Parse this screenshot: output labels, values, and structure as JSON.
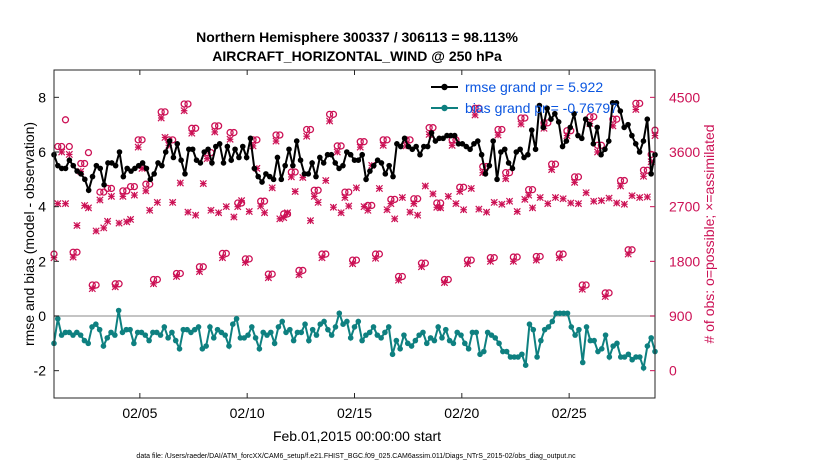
{
  "chart_data": {
    "type": "line",
    "title_line1": "Northern Hemisphere 300337 / 306113 = 98.113%",
    "title_line2": "AIRCRAFT_HORIZONTAL_WIND @ 250 hPa",
    "xlabel": "Feb.01,2015 00:00:00 start",
    "ylabel": "rmse and bias (model - observation)",
    "y2label": "# of obs: o=possible; ×=assimilated",
    "footer": "data file: /Users/raeder/DAI/ATM_forcXX/CAM6_setup/f.e21.FHIST_BGC.f09_025.CAM6assim.011/Diags_NTrS_2015-02/obs_diag_output.nc",
    "xlim": [
      1,
      29
    ],
    "ylim": [
      -3,
      9
    ],
    "y2lim": [
      -450,
      4950
    ],
    "x_ticks": [
      5,
      10,
      15,
      20,
      25
    ],
    "x_tick_labels": [
      "02/05",
      "02/10",
      "02/15",
      "02/20",
      "02/25"
    ],
    "y_ticks": [
      -2,
      0,
      2,
      4,
      6,
      8
    ],
    "y2_ticks": [
      0,
      900,
      1800,
      2700,
      3600,
      4500
    ],
    "legend": [
      {
        "name": "rmse grand pr = 5.922",
        "color": "#000000"
      },
      {
        "name": "bias grand pr = -0.76797",
        "color": "#0e8080"
      }
    ],
    "rmse": [
      5.9,
      5.5,
      5.4,
      5.4,
      5.7,
      5.5,
      5.3,
      5.2,
      5.0,
      4.6,
      5.1,
      5.5,
      5.4,
      4.8,
      5.6,
      5.6,
      5.5,
      6.0,
      5.1,
      5.4,
      5.3,
      5.4,
      5.5,
      5.6,
      5.4,
      5.0,
      5.2,
      5.6,
      5.5,
      6.0,
      6.4,
      5.8,
      6.3,
      5.7,
      5.2,
      6.1,
      6.1,
      5.7,
      5.6,
      6.0,
      6.1,
      5.6,
      6.2,
      6.3,
      5.6,
      6.2,
      5.7,
      6.1,
      5.8,
      6.2,
      5.8,
      6.5,
      5.4,
      5.1,
      4.9,
      5.2,
      5.1,
      5.0,
      5.8,
      5.0,
      5.5,
      6.1,
      5.5,
      6.4,
      5.7,
      5.2,
      5.2,
      5.6,
      5.1,
      5.8,
      5.6,
      5.9,
      5.9,
      5.6,
      5.4,
      5.5,
      6.0,
      5.9,
      5.7,
      5.7,
      5.9,
      5.0,
      5.3,
      5.5,
      5.7,
      5.6,
      5.2,
      5.5,
      5.1,
      6.3,
      6.2,
      6.5,
      6.2,
      6.1,
      6.2,
      5.9,
      6.2,
      6.2,
      6.7,
      6.4,
      6.5,
      6.5,
      6.6,
      6.6,
      6.6,
      6.3,
      6.3,
      6.2,
      6.1,
      6.3,
      6.4,
      5.9,
      5.2,
      5.5,
      6.4,
      5.0,
      6.0,
      6.1,
      5.6,
      5.4,
      6.0,
      6.1,
      5.8,
      5.9,
      6.8,
      6.1,
      7.7,
      6.9,
      7.6,
      7.2,
      7.4,
      7.1,
      6.2,
      6.4,
      6.9,
      7.4,
      6.6,
      6.5,
      7.2,
      7.0,
      6.3,
      6.9,
      5.9,
      6.1,
      6.4,
      7.8,
      7.8,
      7.5,
      6.9,
      7.0,
      6.6,
      6.3,
      6.0,
      6.4,
      7.2,
      5.2,
      5.9
    ],
    "bias": [
      -1.0,
      -0.1,
      -0.7,
      -0.6,
      -0.6,
      -0.7,
      -0.6,
      -0.7,
      -0.9,
      -1.0,
      -0.4,
      -0.3,
      -0.5,
      -1.1,
      -0.8,
      -0.6,
      -0.7,
      0.2,
      -0.6,
      -0.5,
      -0.5,
      -1.0,
      -0.6,
      -0.6,
      -0.7,
      -0.9,
      -0.6,
      -0.6,
      -0.7,
      -0.4,
      -0.8,
      -0.6,
      -0.9,
      -1.2,
      -0.5,
      -0.5,
      -0.6,
      -0.5,
      -0.4,
      -1.2,
      -1.1,
      -0.4,
      -0.8,
      -0.5,
      -0.6,
      -0.7,
      -1.1,
      -0.3,
      -0.1,
      -0.8,
      -0.8,
      -0.7,
      -0.4,
      -0.8,
      -1.2,
      -0.6,
      -0.7,
      -0.6,
      -1.0,
      -0.4,
      -0.2,
      -0.6,
      -0.5,
      -0.9,
      -0.6,
      -0.6,
      -0.3,
      -0.9,
      -0.5,
      -0.7,
      -0.3,
      -0.2,
      -0.5,
      -0.7,
      -0.4,
      0.1,
      -0.3,
      -0.2,
      -0.8,
      -0.4,
      -0.2,
      -0.9,
      -0.7,
      -0.6,
      -0.4,
      -0.7,
      -0.8,
      -0.6,
      -0.4,
      -1.4,
      -0.9,
      -1.2,
      -0.7,
      -1.0,
      -1.1,
      -0.9,
      -0.7,
      -0.6,
      -1.0,
      -0.8,
      -0.9,
      -0.4,
      -0.8,
      -0.5,
      -0.9,
      -1.0,
      -0.6,
      -0.7,
      -1.0,
      -1.2,
      -0.6,
      -0.6,
      -1.4,
      -1.3,
      -0.6,
      -0.7,
      -0.8,
      -1.0,
      -1.3,
      -1.3,
      -1.5,
      -1.5,
      -1.5,
      -1.4,
      -1.8,
      -0.3,
      -0.5,
      -1.5,
      -0.9,
      -0.5,
      -0.4,
      -0.2,
      0.1,
      0.1,
      0.1,
      0.1,
      -0.4,
      -0.7,
      -0.5,
      -1.7,
      -0.4,
      -0.9,
      -0.9,
      -1.3,
      -1.2,
      -0.7,
      -1.5,
      -1.1,
      -1.0,
      -1.5,
      -1.5,
      -1.4,
      -1.6,
      -1.5,
      -1.5,
      -1.9,
      -1.1,
      -0.8,
      -1.3
    ],
    "obs_possible": [
      1920,
      3690,
      3690,
      4130,
      3690,
      1950,
      1950,
      3410,
      3410,
      3590,
      1410,
      1410,
      2940,
      2940,
      3000,
      3000,
      1430,
      1430,
      2960,
      2960,
      3030,
      3030,
      3800,
      3800,
      3070,
      3070,
      1500,
      1500,
      4260,
      4260,
      3800,
      3800,
      1600,
      1600,
      4390,
      4390,
      3990,
      3990,
      1710,
      1710,
      3590,
      3590,
      4030,
      4030,
      1930,
      1930,
      3920,
      3920,
      2760,
      2760,
      1840,
      1840,
      3800,
      3800,
      2790,
      2790,
      1590,
      1590,
      3880,
      3880,
      2580,
      2580,
      3270,
      3270,
      1650,
      1650,
      3970,
      3970,
      2970,
      2970,
      1920,
      1920,
      4220,
      4220,
      3700,
      3700,
      2940,
      2940,
      1820,
      1820,
      3770,
      3770,
      2720,
      2720,
      1920,
      1920,
      3800,
      3800,
      2820,
      2820,
      1550,
      1550,
      3800,
      3800,
      2830,
      2830,
      1770,
      1770,
      4000,
      4000,
      2760,
      2760,
      1500,
      1500,
      3800,
      3800,
      3020,
      3020,
      1820,
      1820,
      4320,
      4320,
      3360,
      3360,
      1860,
      1860,
      3970,
      3970,
      3260,
      3260,
      1870,
      1870,
      4160,
      4160,
      2980,
      2980,
      1880,
      1880,
      4080,
      4080,
      3400,
      3400,
      1920,
      1920,
      3950,
      3950,
      3190,
      3190,
      1410,
      1410,
      4180,
      4180,
      3710,
      3710,
      1280,
      1280,
      4140,
      4140,
      3130,
      3130,
      1990,
      1990,
      4400,
      4400,
      3300,
      3300,
      3560,
      3960
    ],
    "obs_assimilated": [
      1860,
      2750,
      3600,
      2750,
      3560,
      1870,
      2390,
      3280,
      2720,
      2680,
      1350,
      2300,
      2810,
      2350,
      2460,
      2870,
      1380,
      2430,
      2870,
      2450,
      2490,
      2890,
      3680,
      3330,
      2960,
      2640,
      1430,
      2770,
      4160,
      3840,
      3710,
      2770,
      1550,
      3090,
      4280,
      2610,
      3910,
      2560,
      1630,
      3080,
      3490,
      2640,
      3930,
      2600,
      1860,
      2700,
      3810,
      2530,
      2700,
      2800,
      1780,
      2620,
      3700,
      3330,
      2710,
      2600,
      1530,
      3010,
      3780,
      2500,
      2520,
      2600,
      3190,
      2950,
      1580,
      3180,
      3860,
      2470,
      2870,
      2770,
      1860,
      3130,
      4110,
      2690,
      3600,
      2600,
      2850,
      2710,
      1760,
      3010,
      3680,
      2700,
      2640,
      3380,
      1850,
      3000,
      3710,
      2650,
      2750,
      2500,
      1490,
      2850,
      3700,
      2610,
      2750,
      2560,
      1710,
      3040,
      3890,
      2910,
      2690,
      2680,
      1450,
      2870,
      3710,
      2750,
      2950,
      2650,
      1760,
      3000,
      4210,
      2660,
      3260,
      2610,
      1800,
      2770,
      3880,
      2740,
      3160,
      2790,
      1800,
      2620,
      4060,
      2820,
      2890,
      2680,
      1820,
      2850,
      3990,
      2750,
      3310,
      2850,
      1860,
      2830,
      3870,
      2760,
      3100,
      2750,
      1340,
      2930,
      4070,
      2790,
      3600,
      2800,
      1220,
      2840,
      4030,
      2760,
      3040,
      2740,
      1920,
      2880,
      4300,
      2850,
      3200,
      2860,
      3440,
      3870
    ]
  }
}
